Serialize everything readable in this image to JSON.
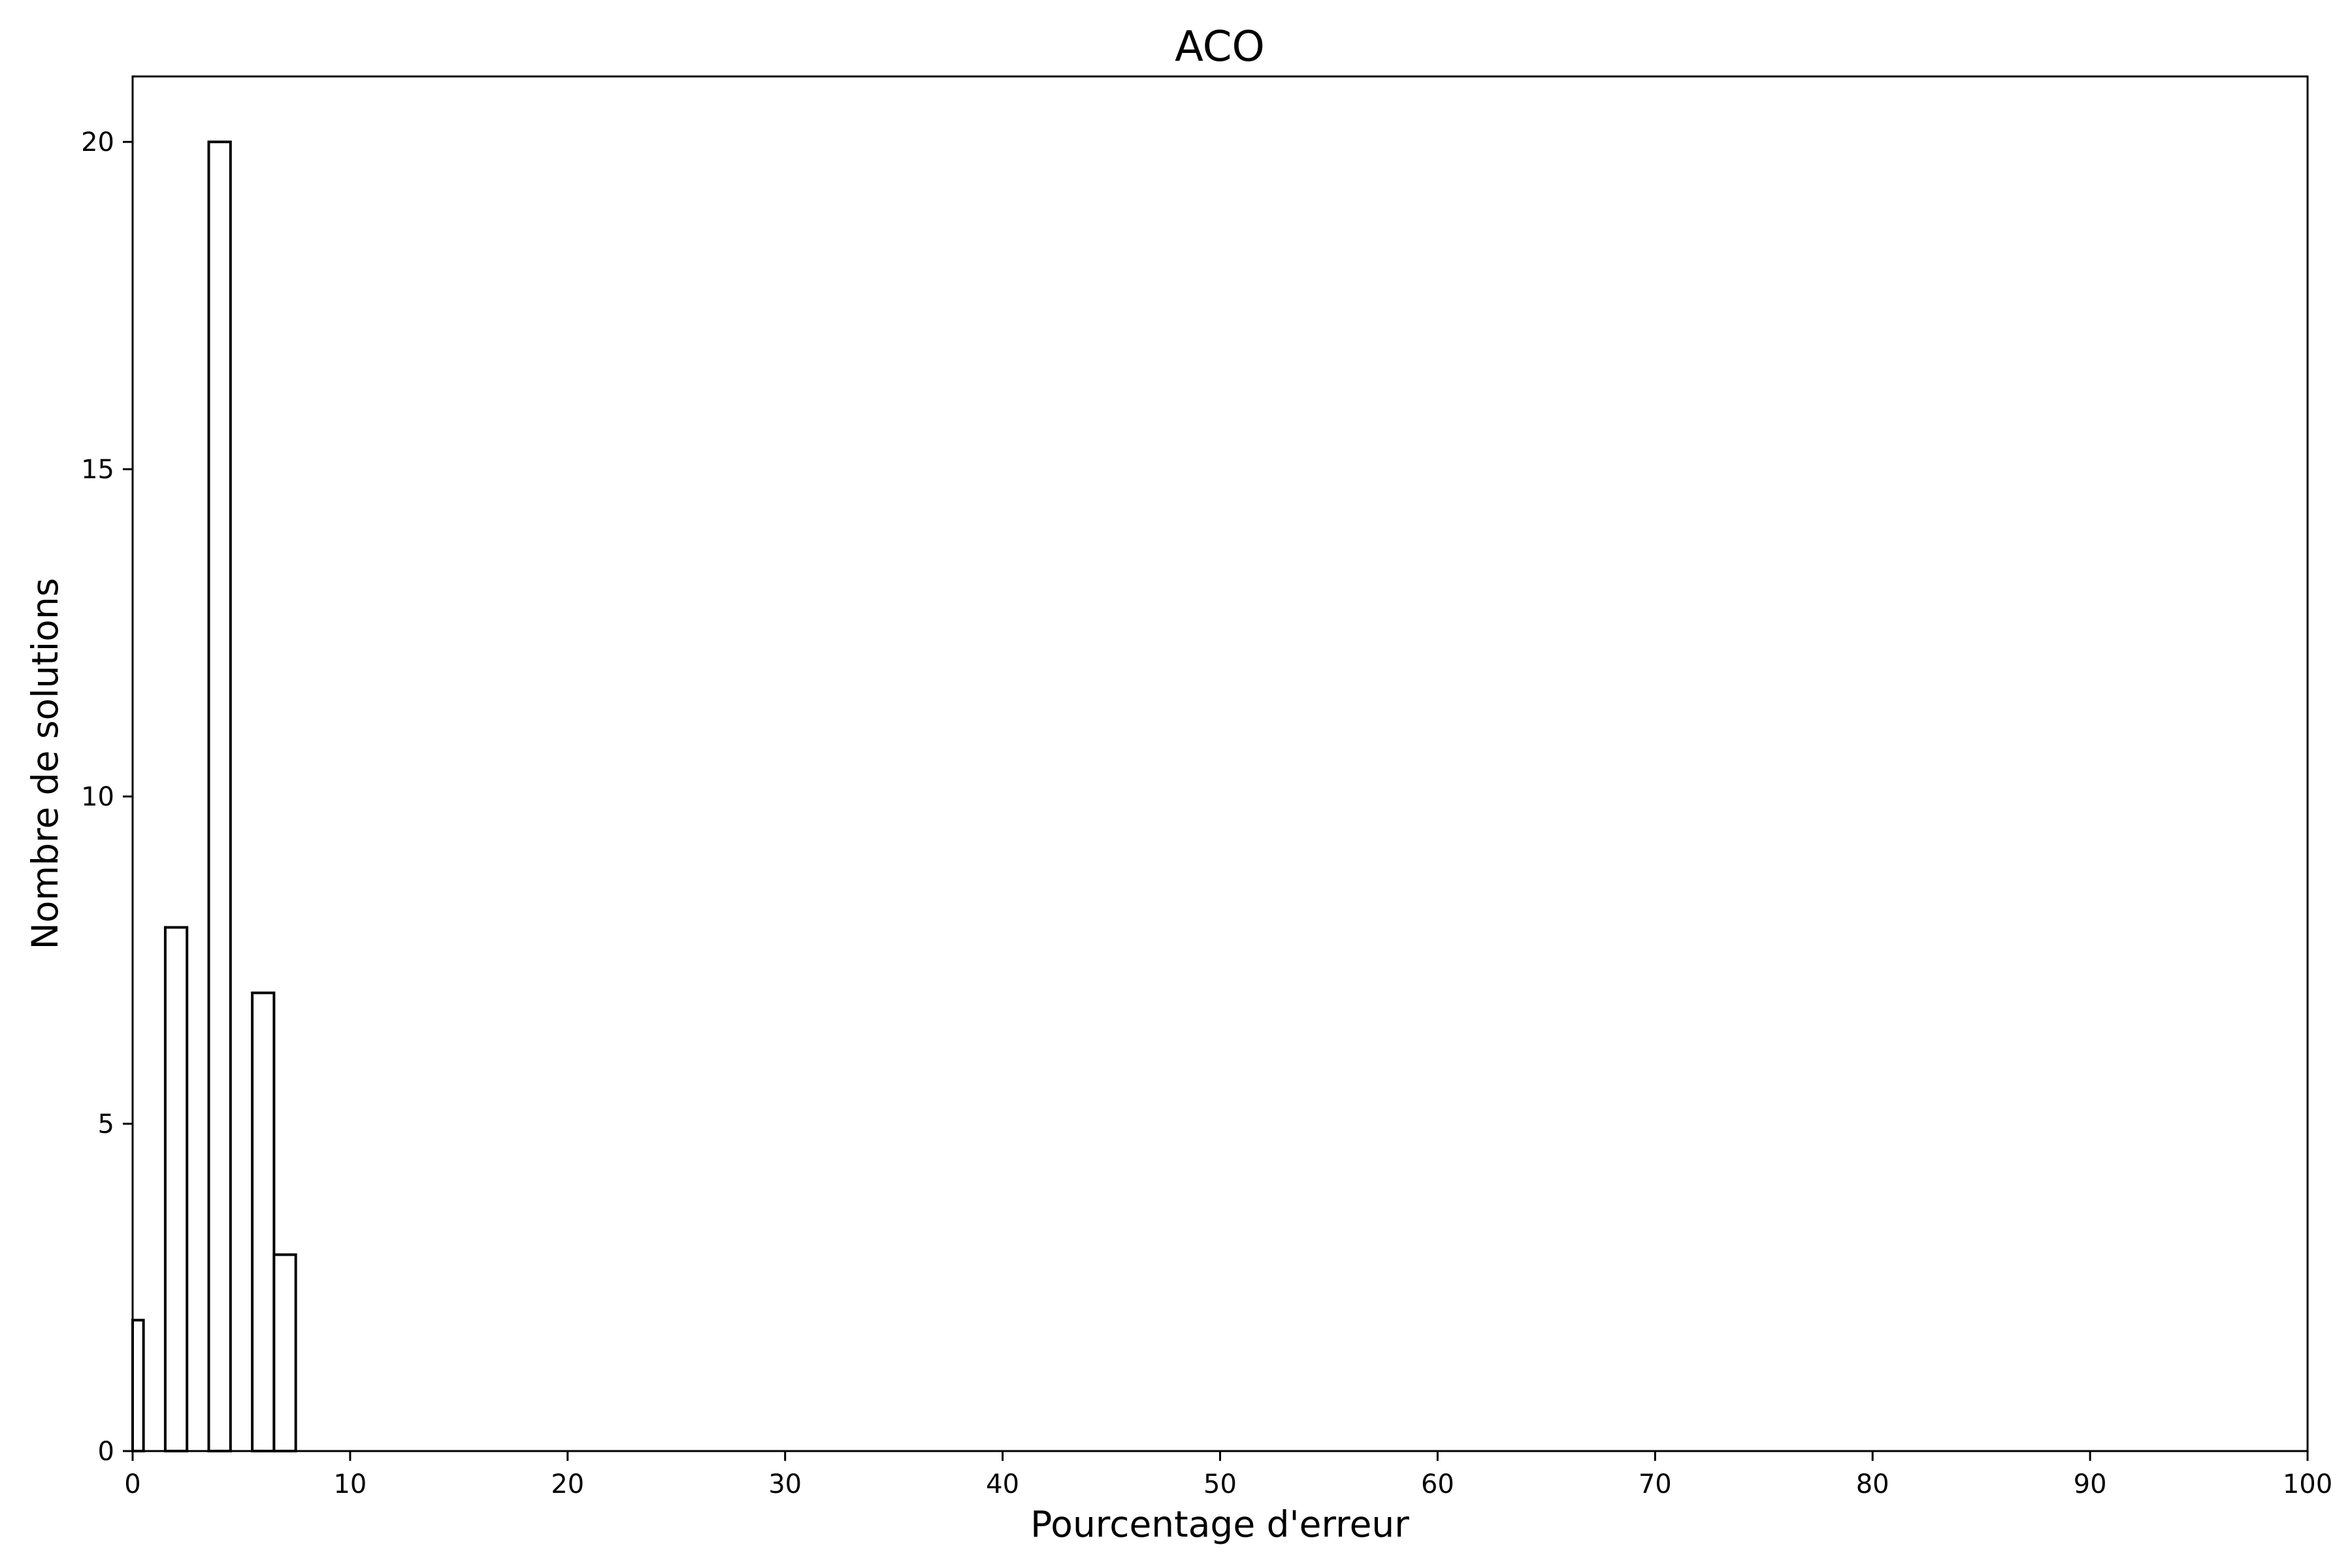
{
  "chart_data": {
    "type": "bar",
    "title": "ACO",
    "xlabel": "Pourcentage d'erreur",
    "ylabel": "Nombre de solutions",
    "xlim": [
      0,
      100
    ],
    "ylim": [
      0,
      21
    ],
    "xticks": [
      0,
      10,
      20,
      30,
      40,
      50,
      60,
      70,
      80,
      90,
      100
    ],
    "yticks": [
      0,
      5,
      10,
      15,
      20
    ],
    "grid": false,
    "bars": [
      {
        "x_start": 0.0,
        "x_end": 0.5,
        "value": 2
      },
      {
        "x_start": 1.5,
        "x_end": 2.5,
        "value": 8
      },
      {
        "x_start": 3.5,
        "x_end": 4.5,
        "value": 20
      },
      {
        "x_start": 5.5,
        "x_end": 6.5,
        "value": 7
      },
      {
        "x_start": 6.5,
        "x_end": 7.5,
        "value": 3
      }
    ],
    "colors": {
      "bar_fill": "#ffffff",
      "bar_edge": "#000000"
    }
  }
}
